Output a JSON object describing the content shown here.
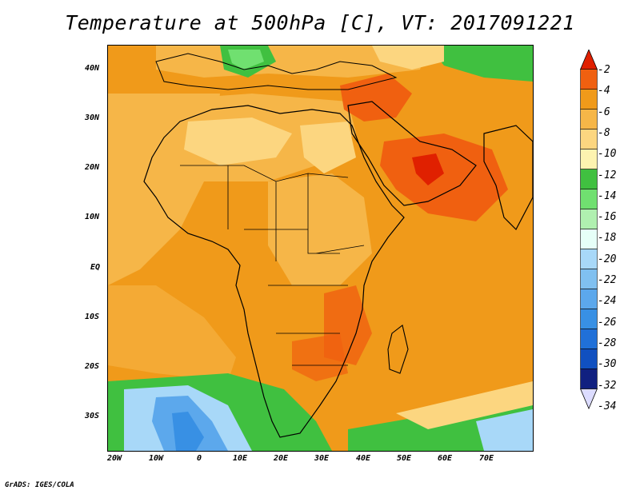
{
  "title": "Temperature at 500hPa [C], VT: 2017091221",
  "credit": "GrADS: IGES/COLA",
  "lat_labels": [
    "40N",
    "30N",
    "20N",
    "10N",
    "EQ",
    "10S",
    "20S",
    "30S"
  ],
  "lon_labels": [
    "20W",
    "10W",
    "0",
    "10E",
    "20E",
    "30E",
    "40E",
    "50E",
    "60E",
    "70E"
  ],
  "colorbar": {
    "labels": [
      "-2",
      "-4",
      "-6",
      "-8",
      "-10",
      "-12",
      "-14",
      "-16",
      "-18",
      "-20",
      "-22",
      "-24",
      "-26",
      "-28",
      "-30",
      "-32",
      "-34"
    ],
    "colors": [
      "#e02000",
      "#f06010",
      "#f09a1a",
      "#f6b648",
      "#fcd680",
      "#fdf3b0",
      "#40c040",
      "#70e070",
      "#b0f0b0",
      "#e6fff8",
      "#a8d8f8",
      "#80c0f0",
      "#5ca8ec",
      "#3890e4",
      "#2070d8",
      "#1050c0",
      "#102080"
    ],
    "top_arrow_color": "#e02000",
    "bottom_arrow_color": "#dcdcff"
  },
  "map": {
    "background_color": "#f0a030",
    "ocean_warm_color": "#f09a1a",
    "land_color": "#f6b648"
  }
}
